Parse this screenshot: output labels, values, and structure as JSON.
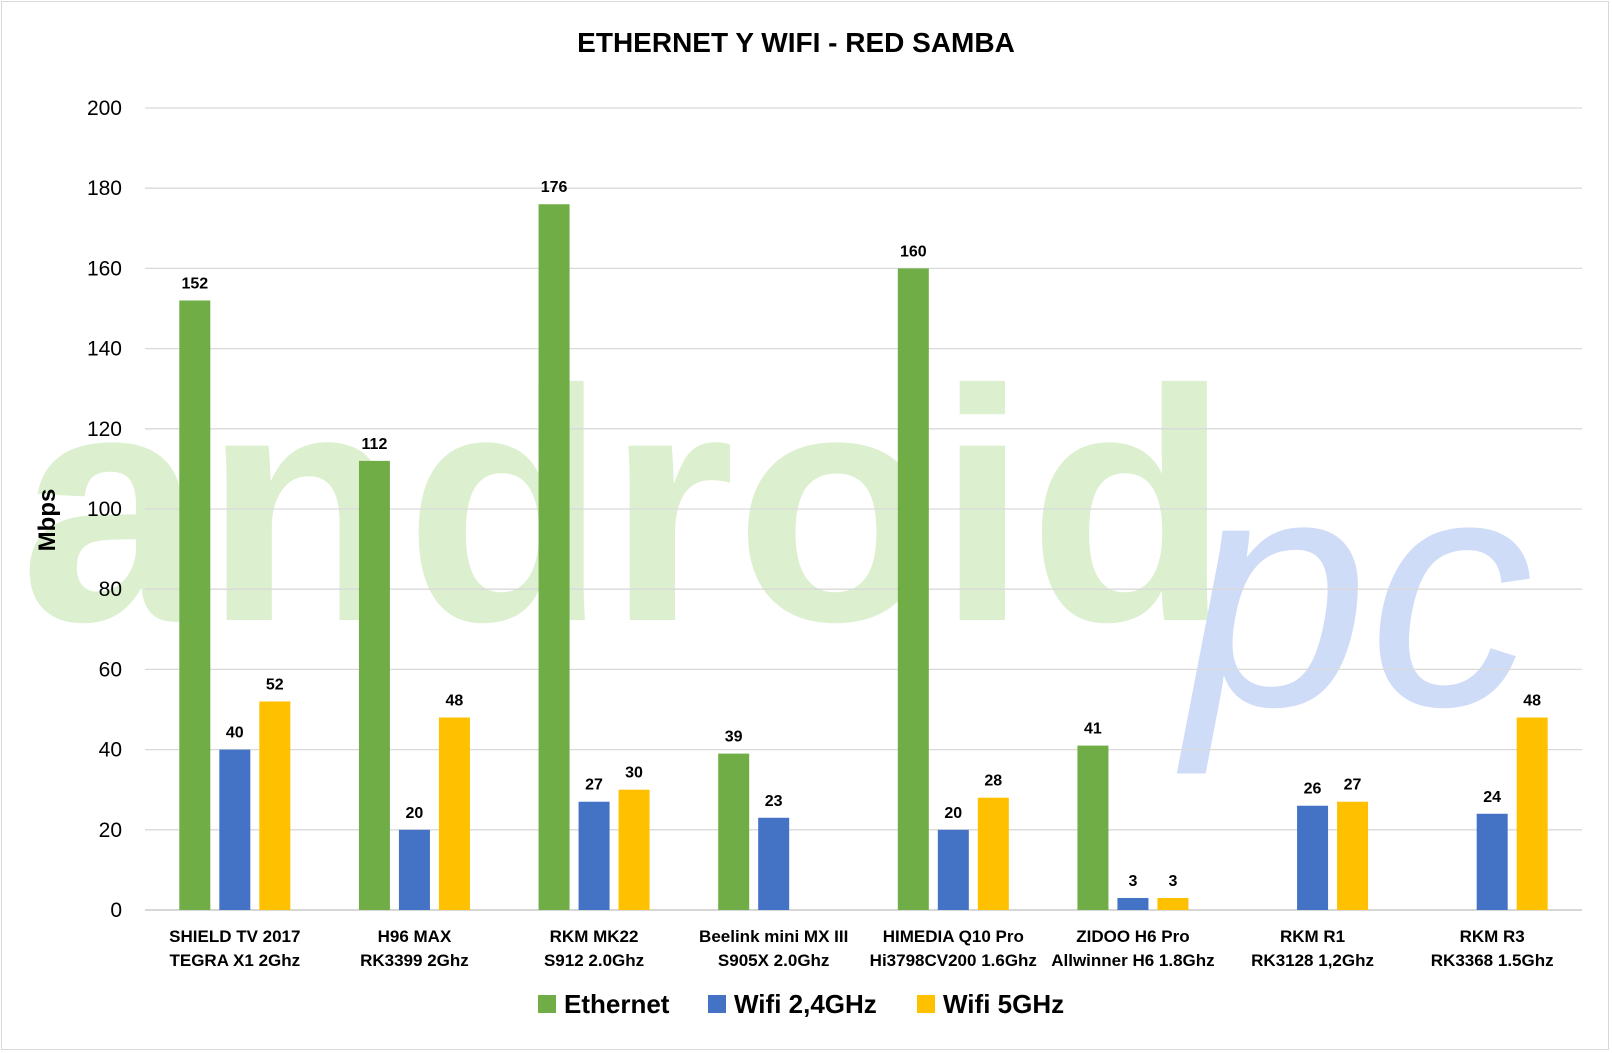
{
  "chart_data": {
    "type": "bar",
    "title": "ETHERNET Y WIFI - RED SAMBA",
    "ylabel": "Mbps",
    "ylim": [
      0,
      200
    ],
    "yticks": [
      "0",
      "20",
      "40",
      "60",
      "80",
      "100",
      "120",
      "140",
      "160",
      "180",
      "200"
    ],
    "grid": true,
    "legend_position": "bottom",
    "categories": [
      [
        "SHIELD TV 2017",
        "TEGRA X1 2Ghz"
      ],
      [
        "H96 MAX",
        "RK3399 2Ghz"
      ],
      [
        "RKM MK22",
        "S912 2.0Ghz"
      ],
      [
        "Beelink mini MX III",
        "S905X 2.0Ghz"
      ],
      [
        "HIMEDIA Q10 Pro",
        "Hi3798CV200 1.6Ghz"
      ],
      [
        "ZIDOO H6 Pro",
        "Allwinner H6 1.8Ghz"
      ],
      [
        "RKM R1",
        "RK3128 1,2Ghz"
      ],
      [
        "RKM R3",
        "RK3368 1.5Ghz"
      ]
    ],
    "series": [
      {
        "name": "Ethernet",
        "color": "#70ad47",
        "values": [
          152,
          112,
          176,
          39,
          160,
          41,
          null,
          null
        ]
      },
      {
        "name": "Wifi 2,4GHz",
        "color": "#4472c4",
        "values": [
          40,
          20,
          27,
          23,
          20,
          3,
          26,
          24
        ]
      },
      {
        "name": "Wifi 5GHz",
        "color": "#ffc000",
        "values": [
          52,
          48,
          30,
          null,
          28,
          3,
          27,
          48
        ]
      }
    ]
  },
  "watermark": {
    "text_main": "android",
    "text_accent": "pc"
  }
}
